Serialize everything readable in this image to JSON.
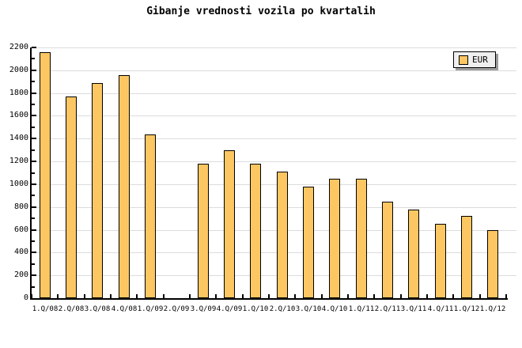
{
  "colors": {
    "bar_fill": "#FCC762",
    "bar_border": "#000000",
    "gridline": "#DCDCDC",
    "axis": "#000000",
    "background": "#FFFFFF",
    "legend_bg": "#EFEFEF",
    "legend_shadow": "#9C9C9C"
  },
  "legend": {
    "label": "EUR"
  },
  "chart_data": {
    "type": "bar",
    "title": "Gibanje vrednosti vozila po kvartalih",
    "categories": [
      "1.Q/08",
      "2.Q/08",
      "3.Q/08",
      "4.Q/08",
      "1.Q/09",
      "2.Q/09",
      "3.Q/09",
      "4.Q/09",
      "1.Q/10",
      "2.Q/10",
      "3.Q/10",
      "4.Q/10",
      "1.Q/11",
      "2.Q/11",
      "3.Q/11",
      "4.Q/11",
      "1.Q/12",
      "1.Q/12"
    ],
    "series": [
      {
        "name": "EUR",
        "values": [
          2160,
          1770,
          1890,
          1960,
          1440,
          null,
          1180,
          1300,
          1180,
          1110,
          980,
          1050,
          1050,
          850,
          780,
          650,
          720,
          600
        ]
      }
    ],
    "xlabel": "",
    "ylabel": "",
    "ylim": [
      0,
      2200
    ],
    "ytick_step": 200,
    "ytick_minor_step": 100,
    "grid": true,
    "legend_position": "top-right"
  }
}
